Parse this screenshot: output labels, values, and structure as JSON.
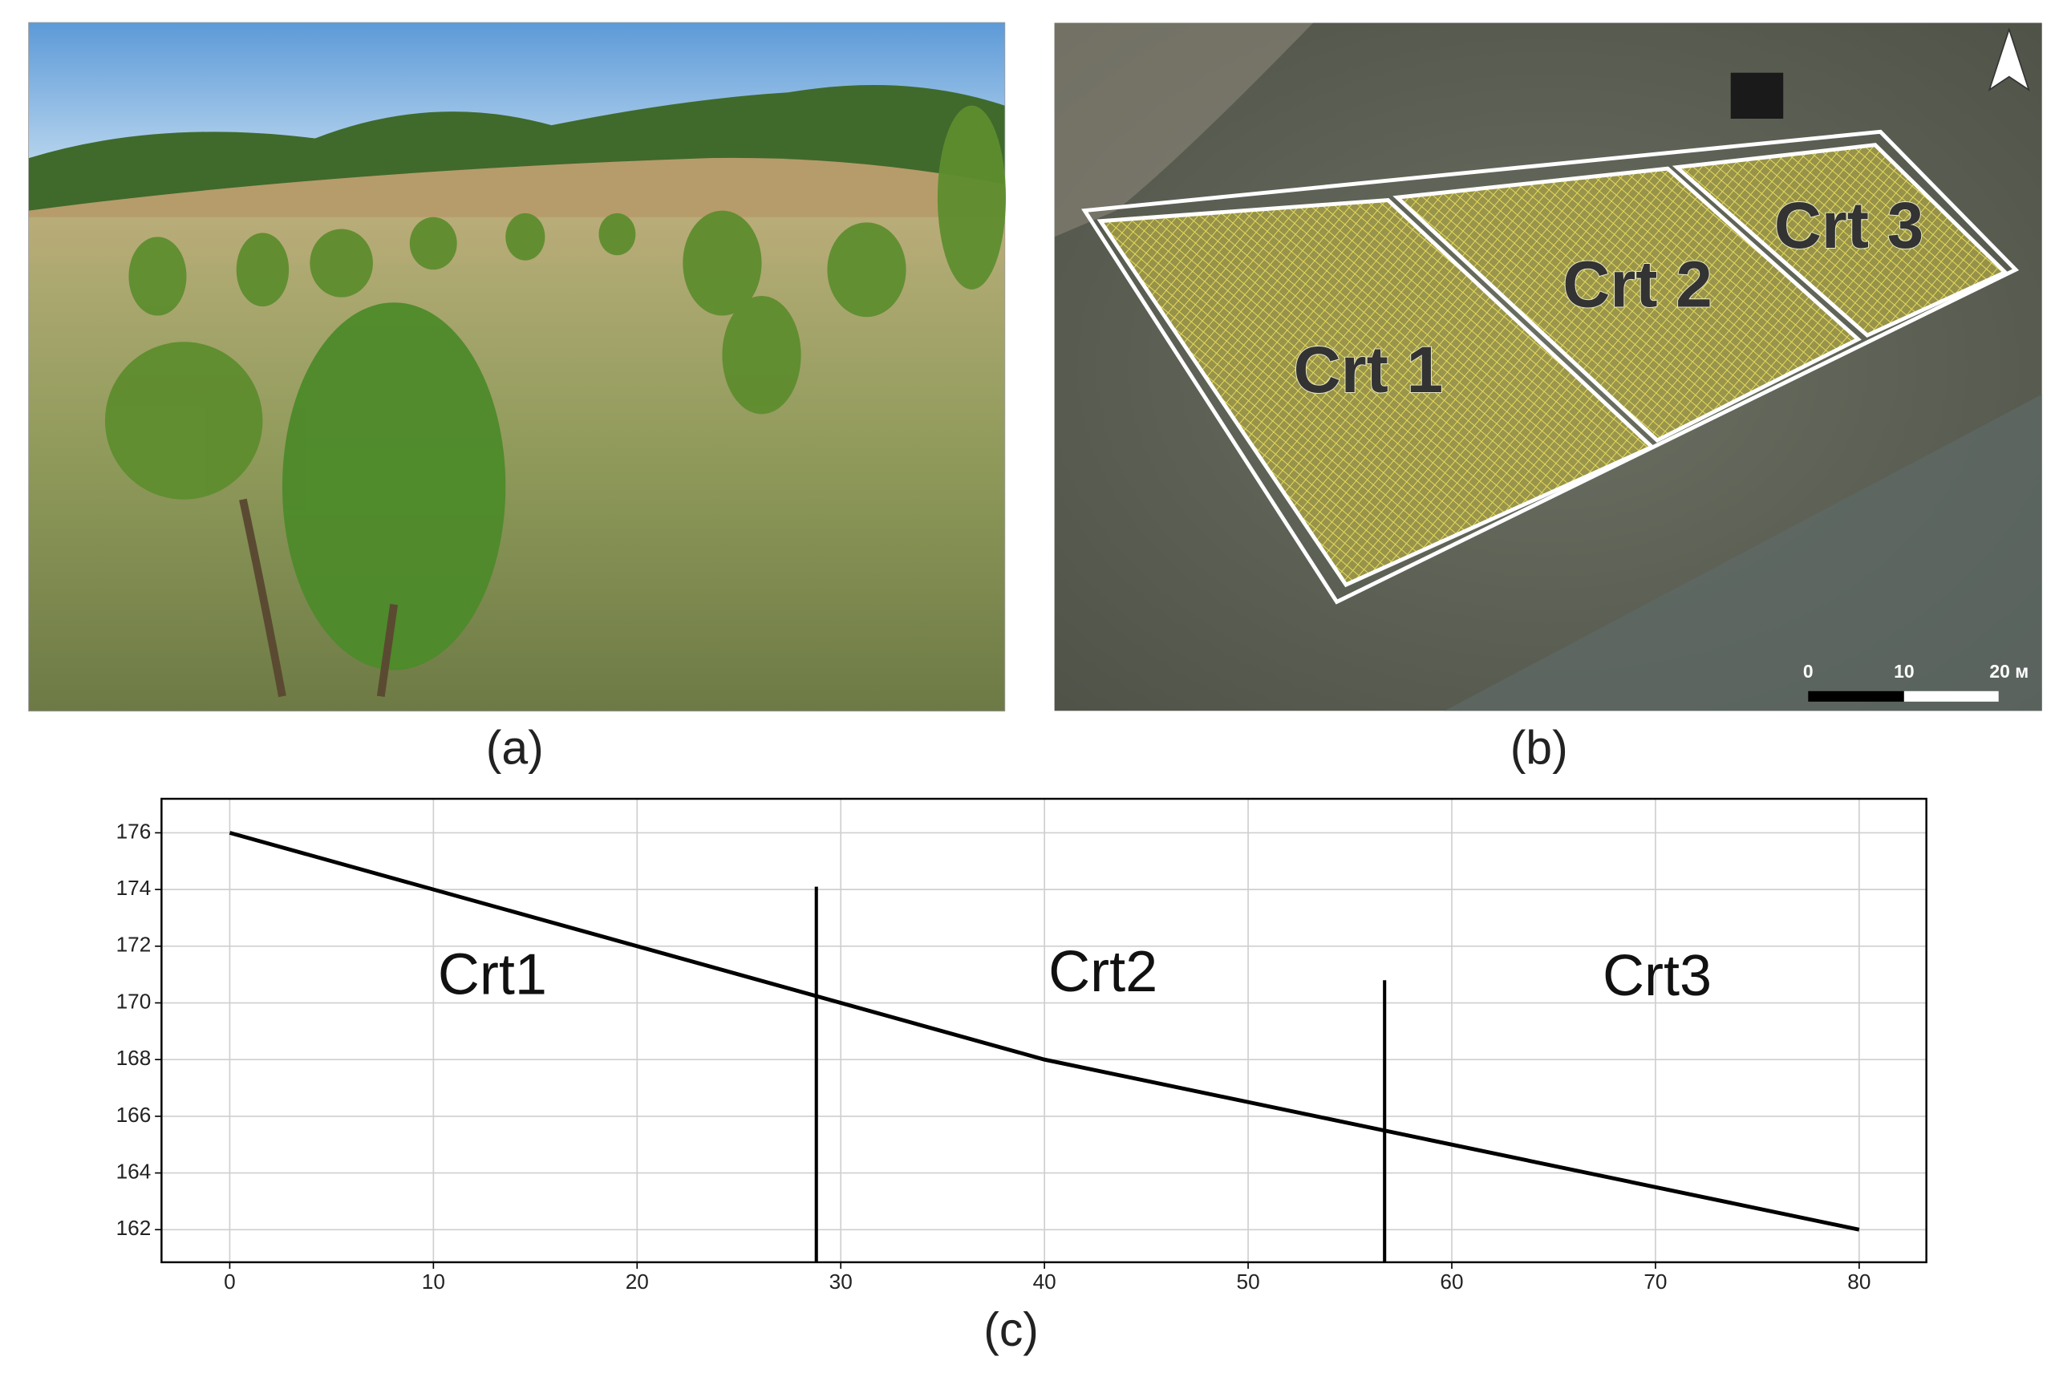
{
  "panels": {
    "a": {
      "caption": "(a)"
    },
    "b": {
      "caption": "(b)",
      "plots": [
        "Crt 1",
        "Crt 2",
        "Crt 3"
      ],
      "scale_bar": [
        "0",
        "10",
        "20 м"
      ]
    },
    "c": {
      "caption": "(c)"
    }
  },
  "chart_data": {
    "type": "line",
    "x": [
      0,
      40,
      80
    ],
    "values": [
      176,
      168,
      162
    ],
    "color": "#000000",
    "xlim": [
      -3.35,
      83.3
    ],
    "ylim": [
      160.85,
      177.2
    ],
    "xticks": [
      0,
      10,
      20,
      30,
      40,
      50,
      60,
      70,
      80
    ],
    "yticks": [
      162,
      164,
      166,
      168,
      170,
      172,
      174,
      176
    ],
    "grid": true,
    "dividers": [
      {
        "x": 28.8,
        "y_top": 174.1
      },
      {
        "x": 56.7,
        "y_top": 170.8
      }
    ],
    "annotations": [
      "Crt1",
      "Crt2",
      "Crt3"
    ]
  }
}
